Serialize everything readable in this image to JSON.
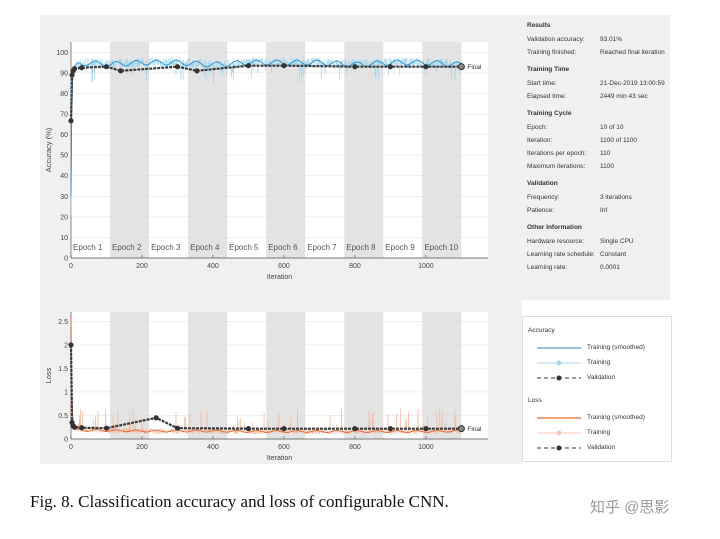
{
  "caption": "Fig. 8.   Classification accuracy and loss of configurable CNN.",
  "watermark": "知乎 @思影",
  "info": {
    "sections": [
      {
        "title": "Results",
        "rows": [
          [
            "Validation accuracy:",
            "93.01%"
          ],
          [
            "Training finished:",
            "Reached final iteration"
          ]
        ]
      },
      {
        "title": "Training Time",
        "rows": [
          [
            "Start time:",
            "21-Dec-2019 13:00:59"
          ],
          [
            "Elapsed time:",
            "2449 min 43 sec"
          ]
        ]
      },
      {
        "title": "Training Cycle",
        "rows": [
          [
            "Epoch:",
            "10 of 10"
          ],
          [
            "Iteration:",
            "1100 of 1100"
          ],
          [
            "Iterations per epoch:",
            "110"
          ],
          [
            "Maximum iterations:",
            "1100"
          ]
        ]
      },
      {
        "title": "Validation",
        "rows": [
          [
            "Frequency:",
            "3 iterations"
          ],
          [
            "Patience:",
            "Inf"
          ]
        ]
      },
      {
        "title": "Other Information",
        "rows": [
          [
            "Hardware resource:",
            "Single CPU"
          ],
          [
            "Learning rate schedule:",
            "Constant"
          ],
          [
            "Learning rate:",
            "0.0001"
          ]
        ]
      }
    ]
  },
  "legend": {
    "accuracy_title": "Accuracy",
    "loss_title": "Loss",
    "smoothed": "Training (smoothed)",
    "training": "Training",
    "validation": "Validation"
  },
  "colors": {
    "acc_smoothed": "#1f8fd0",
    "acc_training": "#9fd3ee",
    "loss_smoothed": "#e8642c",
    "loss_training": "#f4b89a",
    "validation": "#333333",
    "epoch_band": "#e3e3e3"
  },
  "chart_data": [
    {
      "type": "line",
      "ylabel": "Accuracy (%)",
      "xlabel": "Iteration",
      "xlim": [
        0,
        1175
      ],
      "ylim": [
        0,
        105
      ],
      "grid": true,
      "xticks": [
        0,
        200,
        400,
        600,
        800,
        1000
      ],
      "yticks": [
        0,
        10,
        20,
        30,
        40,
        50,
        60,
        70,
        80,
        90,
        100
      ],
      "epochs": [
        "Epoch 1",
        "Epoch 2",
        "Epoch 3",
        "Epoch 4",
        "Epoch 5",
        "Epoch 6",
        "Epoch 7",
        "Epoch 8",
        "Epoch 9",
        "Epoch 10"
      ],
      "iterations_per_epoch": 110,
      "final_label": "Final",
      "series": [
        {
          "name": "Training (smoothed)",
          "x": [
            0,
            2,
            5,
            10,
            20,
            50,
            100,
            200,
            300,
            400,
            500,
            600,
            700,
            800,
            900,
            1000,
            1100
          ],
          "y": [
            30,
            70,
            88,
            92,
            94,
            95,
            94,
            95,
            95,
            94,
            95,
            95,
            95,
            94,
            95,
            95,
            94
          ]
        },
        {
          "name": "Validation",
          "x": [
            0,
            3,
            6,
            10,
            30,
            100,
            140,
            300,
            355,
            500,
            600,
            800,
            900,
            1000,
            1100
          ],
          "y": [
            66.7,
            89,
            91,
            92,
            92.5,
            93,
            91,
            93,
            91,
            93.5,
            93.5,
            93,
            93,
            93,
            93.01
          ]
        }
      ]
    },
    {
      "type": "line",
      "ylabel": "Loss",
      "xlabel": "Iteration",
      "xlim": [
        0,
        1175
      ],
      "ylim": [
        0,
        2.7
      ],
      "grid": true,
      "xticks": [
        0,
        200,
        400,
        600,
        800,
        1000
      ],
      "yticks": [
        0,
        0.5,
        1,
        1.5,
        2,
        2.5
      ],
      "final_label": "Final",
      "series": [
        {
          "name": "Training (smoothed)",
          "x": [
            0,
            2,
            5,
            10,
            20,
            50,
            100,
            200,
            300,
            400,
            500,
            600,
            700,
            800,
            900,
            1000,
            1100
          ],
          "y": [
            2.6,
            1.0,
            0.4,
            0.25,
            0.2,
            0.18,
            0.18,
            0.17,
            0.17,
            0.17,
            0.16,
            0.16,
            0.16,
            0.16,
            0.16,
            0.16,
            0.17
          ]
        },
        {
          "name": "Validation",
          "x": [
            0,
            3,
            6,
            10,
            30,
            100,
            240,
            300,
            500,
            600,
            800,
            900,
            1000,
            1100
          ],
          "y": [
            2.0,
            0.35,
            0.28,
            0.25,
            0.24,
            0.23,
            0.45,
            0.23,
            0.22,
            0.22,
            0.22,
            0.22,
            0.22,
            0.22
          ]
        }
      ]
    }
  ]
}
